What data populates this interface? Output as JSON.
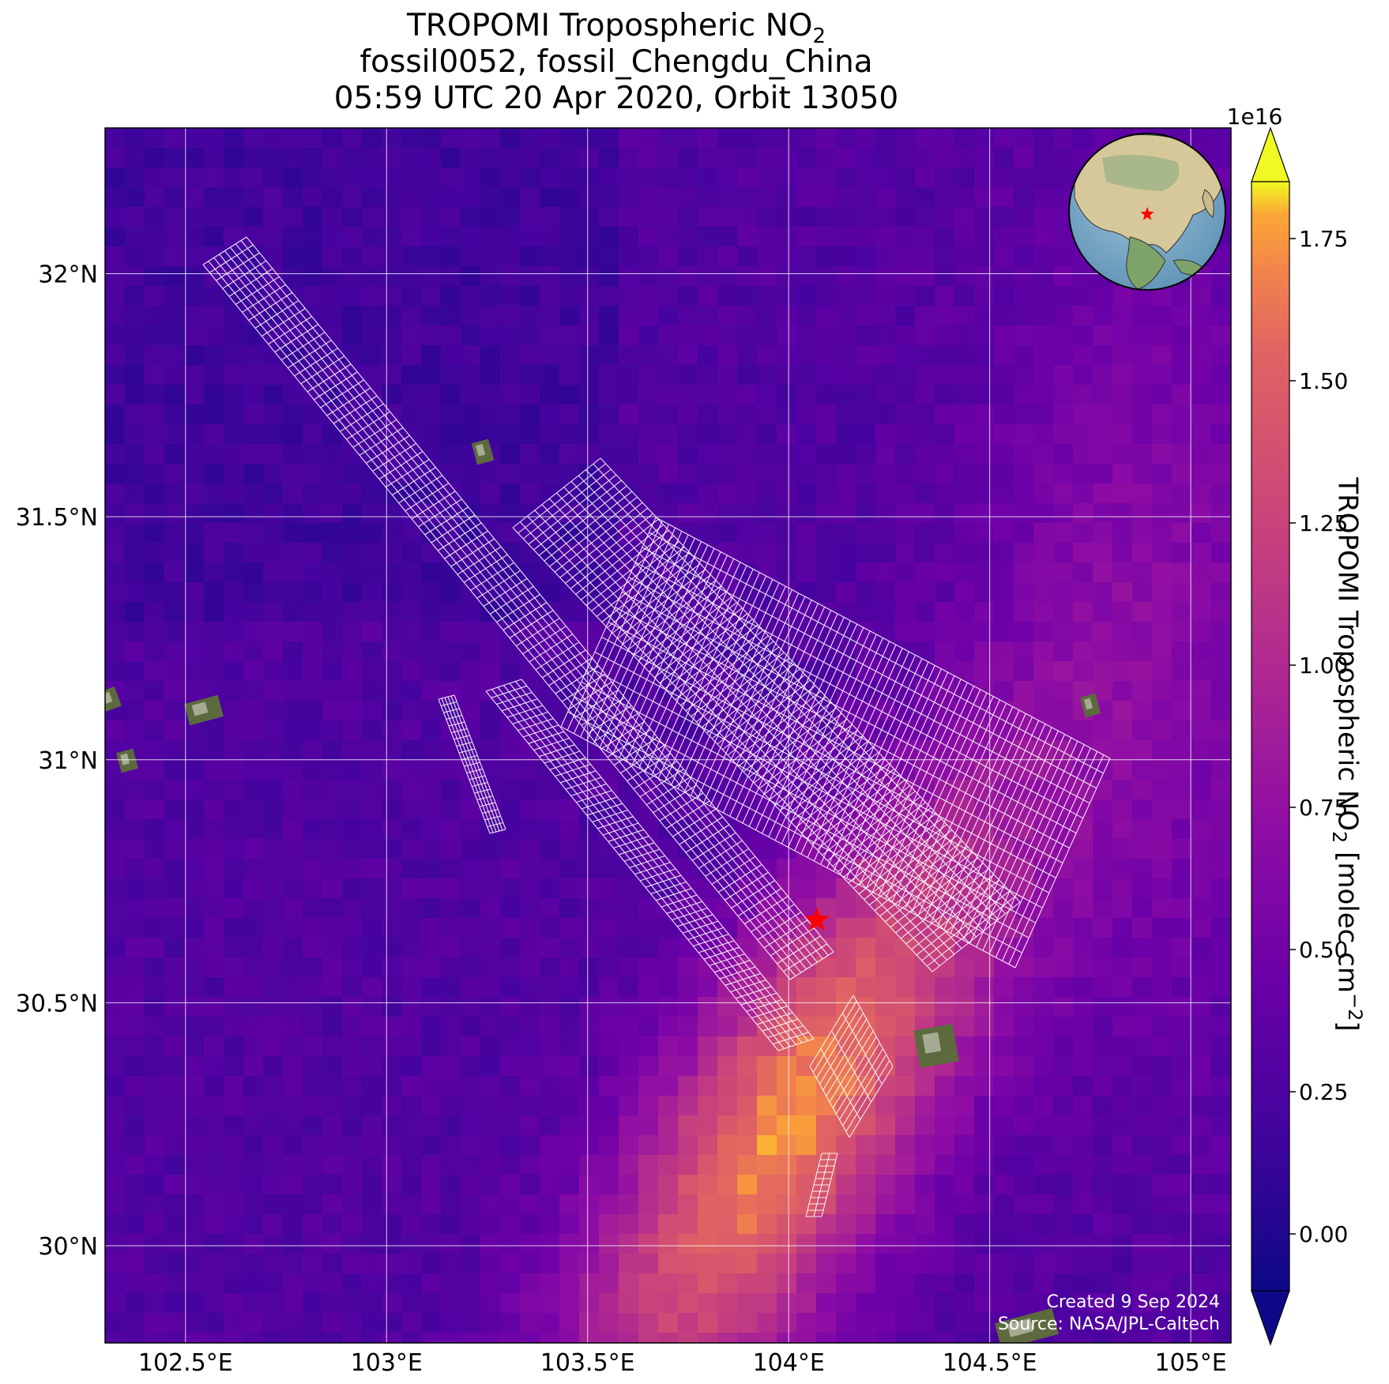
{
  "title": {
    "line1_prefix": "TROPOMI Tropospheric NO",
    "line1_sub": "2",
    "line2": "fossil0052, fossil_Chengdu_China",
    "line3": "05:59 UTC 20 Apr 2020, Orbit 13050"
  },
  "map": {
    "lon_range": [
      102.3,
      105.1
    ],
    "lat_range": [
      29.8,
      32.3
    ],
    "lon_ticks": [
      {
        "value": 102.5,
        "label": "102.5°E"
      },
      {
        "value": 103.0,
        "label": "103°E"
      },
      {
        "value": 103.5,
        "label": "103.5°E"
      },
      {
        "value": 104.0,
        "label": "104°E"
      },
      {
        "value": 104.5,
        "label": "104.5°E"
      },
      {
        "value": 105.0,
        "label": "105°E"
      }
    ],
    "lat_ticks": [
      {
        "value": 30.0,
        "label": "30°N"
      },
      {
        "value": 30.5,
        "label": "30.5°N"
      },
      {
        "value": 31.0,
        "label": "31°N"
      },
      {
        "value": 31.5,
        "label": "31.5°N"
      },
      {
        "value": 32.0,
        "label": "32°N"
      }
    ],
    "gridlines": true,
    "site": {
      "name": "fossil_Chengdu_China",
      "lon": 104.07,
      "lat": 30.67,
      "marker_color": "#ff0000"
    },
    "no2_hotspot": {
      "lon": 104.0,
      "lat": 30.25
    }
  },
  "colorbar": {
    "colormap": "plasma",
    "exponent_label": "1e16",
    "label_prefix": "TROPOMI Tropospheric NO",
    "label_sub": "2",
    "label_mid": " [molec cm",
    "label_sup": "−2",
    "label_end": "]",
    "vmin": -0.1,
    "vmax": 1.85,
    "ticks": [
      "0.00",
      "0.25",
      "0.50",
      "0.75",
      "1.00",
      "1.25",
      "1.50",
      "1.75"
    ],
    "tick_values": [
      0,
      0.25,
      0.5,
      0.75,
      1.0,
      1.25,
      1.5,
      1.75
    ],
    "extend": "both"
  },
  "inset": {
    "type": "globe",
    "marker": "red-star"
  },
  "credits": {
    "line1": "Created 9 Sep 2024",
    "line2": "Source: NASA/JPL-Caltech"
  }
}
